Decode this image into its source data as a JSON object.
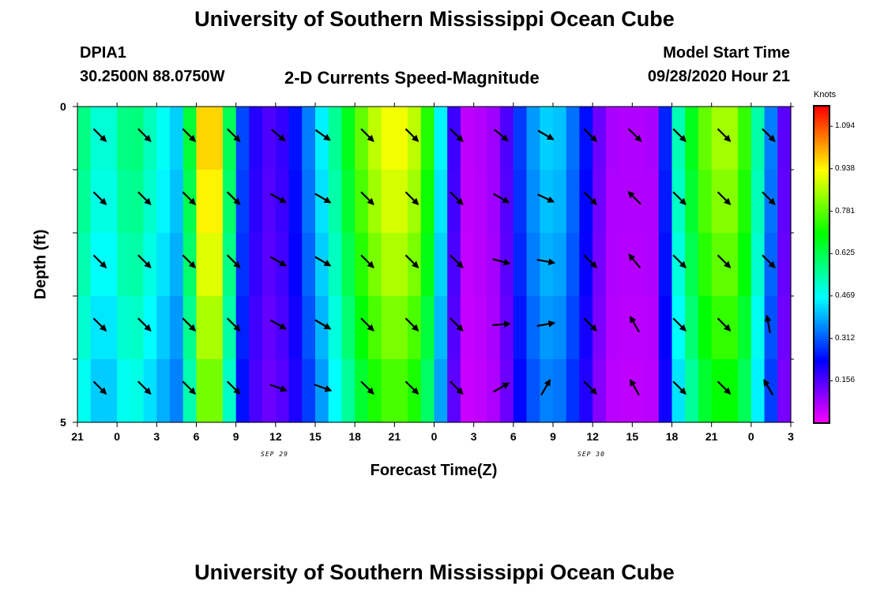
{
  "titles": {
    "top": "University of Southern Mississippi Ocean Cube",
    "bottom": "University of Southern Mississippi Ocean Cube"
  },
  "station": {
    "id": "DPIA1",
    "coords": "30.2500N 88.0750W"
  },
  "model": {
    "label": "Model Start Time",
    "value": "09/28/2020 Hour 21"
  },
  "chart_data": {
    "type": "heatmap",
    "title": "2-D Currents Speed-Magnitude",
    "xlabel": "Forecast Time(Z)",
    "ylabel": "Depth (ft)",
    "ylim": [
      0,
      5
    ],
    "x_tick_labels": [
      "21",
      "0",
      "3",
      "6",
      "9",
      "12",
      "15",
      "18",
      "21",
      "0",
      "3",
      "6",
      "9",
      "12",
      "15",
      "18",
      "21",
      "0",
      "3"
    ],
    "date_labels": [
      "SEP 29",
      "SEP 30"
    ],
    "y_tick_labels": [
      "0",
      "5"
    ],
    "colorbar": {
      "unit": "Knots",
      "min": 0.0,
      "max": 1.17,
      "ticks": [
        "1.094",
        "0.938",
        "0.781",
        "0.625",
        "0.469",
        "0.312",
        "0.156"
      ],
      "tick_values": [
        1.094,
        0.938,
        0.781,
        0.625,
        0.469,
        0.312,
        0.156
      ]
    },
    "speed_profile": {
      "forecast_hour_offsets": [
        0,
        2,
        4,
        6,
        8,
        9,
        10,
        11,
        12,
        14,
        16,
        18,
        20,
        22,
        24,
        26,
        27,
        28,
        29,
        30,
        32,
        34,
        36,
        38,
        40,
        42,
        44,
        45,
        46,
        48,
        50,
        52,
        54
      ],
      "speed_knots": [
        0.62,
        0.47,
        0.62,
        0.5,
        0.4,
        0.9,
        1.05,
        0.9,
        0.35,
        0.15,
        0.2,
        0.4,
        0.62,
        0.85,
        0.95,
        0.85,
        0.62,
        0.3,
        0.06,
        0.06,
        0.1,
        0.35,
        0.45,
        0.3,
        0.08,
        0.07,
        0.08,
        0.45,
        0.62,
        0.85,
        0.85,
        0.45,
        0.05
      ],
      "depth_factors": [
        1.0,
        0.97,
        0.93,
        0.88,
        0.83
      ]
    },
    "vectors": {
      "columns": [
        {
          "dirs": [
            135,
            135,
            135,
            135,
            135
          ]
        },
        {
          "dirs": [
            135,
            135,
            135,
            135,
            135
          ]
        },
        {
          "dirs": [
            135,
            135,
            135,
            135,
            135
          ]
        },
        {
          "dirs": [
            135,
            135,
            135,
            135,
            135
          ]
        },
        {
          "dirs": [
            130,
            120,
            120,
            120,
            110
          ]
        },
        {
          "dirs": [
            125,
            120,
            120,
            120,
            110
          ]
        },
        {
          "dirs": [
            135,
            135,
            135,
            135,
            135
          ]
        },
        {
          "dirs": [
            135,
            135,
            135,
            135,
            135
          ]
        },
        {
          "dirs": [
            135,
            135,
            135,
            135,
            135
          ]
        },
        {
          "dirs": [
            130,
            120,
            105,
            85,
            60
          ]
        },
        {
          "dirs": [
            120,
            115,
            100,
            80,
            30
          ]
        },
        {
          "dirs": [
            135,
            135,
            135,
            135,
            135
          ]
        },
        {
          "dirs": [
            135,
            315,
            320,
            330,
            330
          ]
        },
        {
          "dirs": [
            135,
            135,
            135,
            135,
            135
          ]
        },
        {
          "dirs": [
            135,
            135,
            135,
            135,
            135
          ]
        },
        {
          "dirs": [
            135,
            135,
            135,
            350,
            330
          ]
        }
      ],
      "speeds": [
        0.62,
        0.62,
        0.62,
        0.62,
        0.4,
        0.4,
        0.62,
        0.62,
        0.62,
        0.35,
        0.35,
        0.45,
        0.35,
        0.62,
        0.62,
        0.35
      ]
    }
  }
}
